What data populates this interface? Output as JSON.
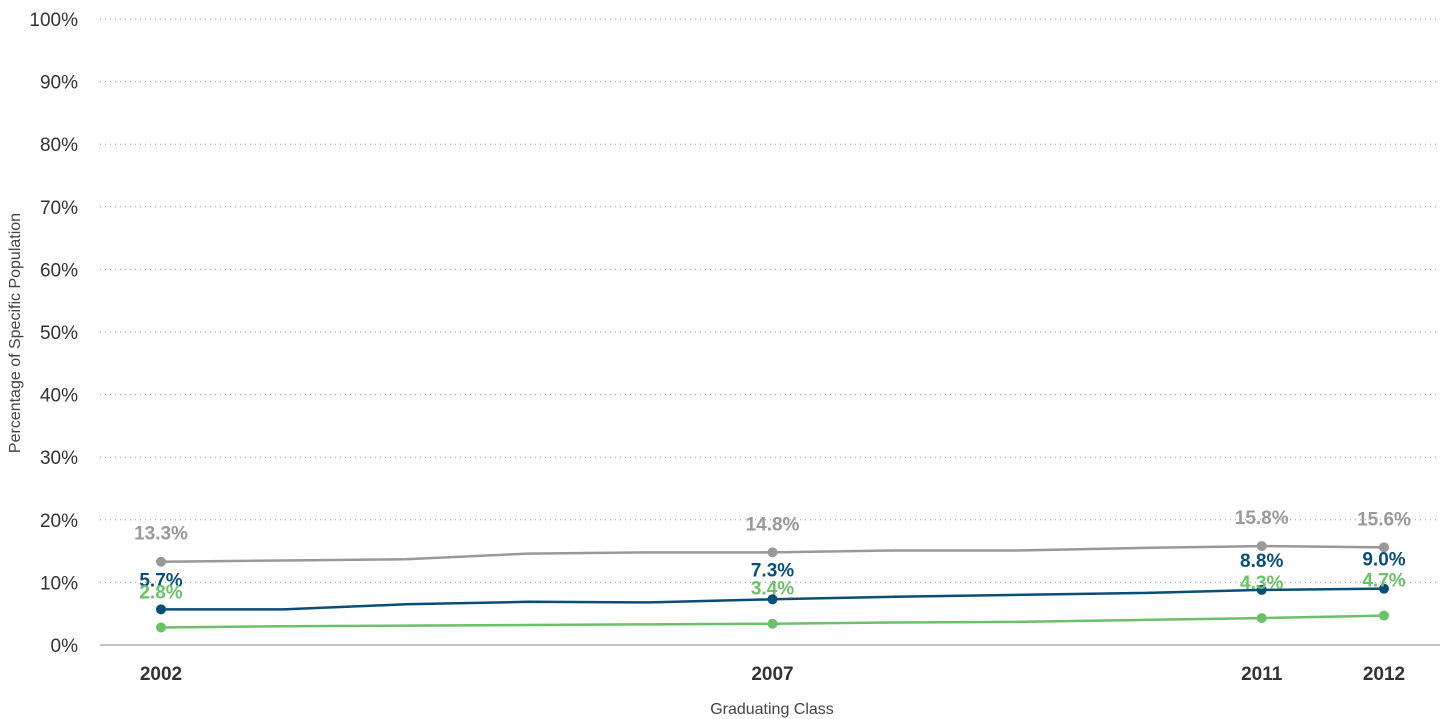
{
  "chart_data": {
    "type": "line",
    "title": "",
    "xlabel": "Graduating Class",
    "ylabel": "Percentage of Specific Population",
    "x": [
      2002,
      2003,
      2004,
      2005,
      2006,
      2007,
      2008,
      2009,
      2010,
      2011,
      2012
    ],
    "x_tick_labels": [
      "2002",
      "2007",
      "2011",
      "2012"
    ],
    "x_tick_values": [
      2002,
      2007,
      2011,
      2012
    ],
    "ylim": [
      0,
      100
    ],
    "y_ticks": [
      0,
      10,
      20,
      30,
      40,
      50,
      60,
      70,
      80,
      90,
      100
    ],
    "y_tick_labels": [
      "0%",
      "10%",
      "20%",
      "30%",
      "40%",
      "50%",
      "60%",
      "70%",
      "80%",
      "90%",
      "100%"
    ],
    "grid": "horizontal-dotted",
    "series": [
      {
        "color": "#999999",
        "values": [
          13.3,
          13.5,
          13.7,
          14.6,
          14.8,
          14.8,
          15.1,
          15.1,
          15.5,
          15.8,
          15.6
        ],
        "markers": [
          2002,
          2007,
          2011,
          2012
        ],
        "labels": {
          "2002": "13.3%",
          "2007": "14.8%",
          "2011": "15.8%",
          "2012": "15.6%"
        }
      },
      {
        "color": "#0a4d76",
        "values": [
          5.7,
          5.7,
          6.5,
          6.9,
          6.8,
          7.3,
          7.7,
          8.0,
          8.3,
          8.8,
          9.0
        ],
        "markers": [
          2002,
          2007,
          2011,
          2012
        ],
        "labels": {
          "2002": "5.7%",
          "2007": "7.3%",
          "2011": "8.8%",
          "2012": "9.0%"
        }
      },
      {
        "color": "#6cc06a",
        "values": [
          2.8,
          3.0,
          3.1,
          3.2,
          3.3,
          3.4,
          3.6,
          3.7,
          4.0,
          4.3,
          4.7
        ],
        "markers": [
          2002,
          2007,
          2011,
          2012
        ],
        "labels": {
          "2002": "2.8%",
          "2007": "3.4%",
          "2011": "4.3%",
          "2012": "4.7%"
        }
      }
    ]
  }
}
